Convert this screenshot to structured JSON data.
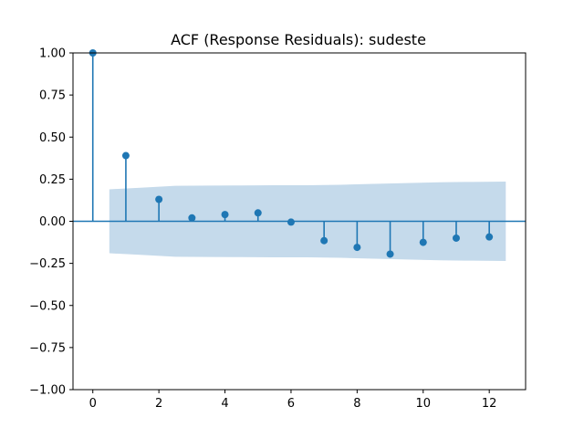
{
  "chart_data": {
    "type": "stem",
    "title": "ACF (Response Residuals): sudeste",
    "xlabel": "",
    "ylabel": "",
    "xlim": [
      -0.6,
      13.1
    ],
    "ylim": [
      -1.0,
      1.0
    ],
    "x_ticks": [
      0,
      2,
      4,
      6,
      8,
      10,
      12
    ],
    "y_ticks": [
      -1.0,
      -0.75,
      -0.5,
      -0.25,
      0.0,
      0.25,
      0.5,
      0.75,
      1.0
    ],
    "x_tick_labels": [
      "0",
      "2",
      "4",
      "6",
      "8",
      "10",
      "12"
    ],
    "y_tick_labels": [
      "−1.00",
      "−0.75",
      "−0.50",
      "−0.25",
      "0.00",
      "0.25",
      "0.50",
      "0.75",
      "1.00"
    ],
    "grid": false,
    "lags": [
      0,
      1,
      2,
      3,
      4,
      5,
      6,
      7,
      8,
      9,
      10,
      11,
      12
    ],
    "acf": [
      1.0,
      0.39,
      0.13,
      0.02,
      0.04,
      0.05,
      -0.005,
      -0.115,
      -0.155,
      -0.195,
      -0.125,
      -0.1,
      -0.093
    ],
    "confidence_band": {
      "x": [
        0.5,
        1.5,
        2.5,
        3.5,
        4.5,
        5.5,
        6.5,
        7.5,
        8.5,
        9.5,
        10.5,
        11.5,
        12.5
      ],
      "upper": [
        0.19,
        0.2,
        0.211,
        0.212,
        0.213,
        0.214,
        0.214,
        0.217,
        0.222,
        0.227,
        0.232,
        0.234,
        0.236
      ],
      "lower": [
        -0.19,
        -0.2,
        -0.211,
        -0.212,
        -0.213,
        -0.214,
        -0.214,
        -0.217,
        -0.222,
        -0.227,
        -0.232,
        -0.234,
        -0.236
      ]
    },
    "colors": {
      "stem": "#1f77b4",
      "band": "#c5daeb",
      "axis": "#000000"
    }
  }
}
